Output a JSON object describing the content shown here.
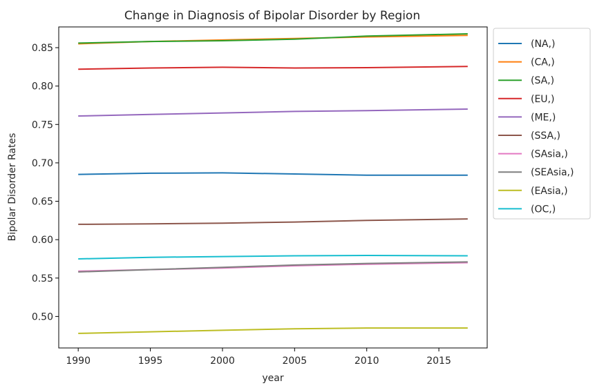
{
  "chart_data": {
    "type": "line",
    "title": "Change in Diagnosis of Bipolar Disorder by Region",
    "xlabel": "year",
    "ylabel": "Bipolar Disorder Rates",
    "xlim": [
      1988.65,
      2018.35
    ],
    "ylim": [
      0.459,
      0.877
    ],
    "xticks": [
      1990,
      1995,
      2000,
      2005,
      2010,
      2015
    ],
    "yticks": [
      0.5,
      0.55,
      0.6,
      0.65,
      0.7,
      0.75,
      0.8,
      0.85
    ],
    "ytick_labels": [
      "0.50",
      "0.55",
      "0.60",
      "0.65",
      "0.70",
      "0.75",
      "0.80",
      "0.85"
    ],
    "grid": false,
    "legend_position": "outside-top-right",
    "x": [
      1990,
      1995,
      2000,
      2005,
      2010,
      2017
    ],
    "series": [
      {
        "name": "(NA,)",
        "color": "#1f77b4",
        "values": [
          0.685,
          0.6865,
          0.687,
          0.6855,
          0.684,
          0.684
        ]
      },
      {
        "name": "(CA,)",
        "color": "#ff7f0e",
        "values": [
          0.855,
          0.858,
          0.86,
          0.862,
          0.864,
          0.866
        ]
      },
      {
        "name": "(SA,)",
        "color": "#2ca02c",
        "values": [
          0.856,
          0.858,
          0.859,
          0.861,
          0.865,
          0.868
        ]
      },
      {
        "name": "(EU,)",
        "color": "#d62728",
        "values": [
          0.822,
          0.8235,
          0.8245,
          0.8235,
          0.824,
          0.8255
        ]
      },
      {
        "name": "(ME,)",
        "color": "#9467bd",
        "values": [
          0.761,
          0.763,
          0.765,
          0.767,
          0.768,
          0.77
        ]
      },
      {
        "name": "(SSA,)",
        "color": "#8c564b",
        "values": [
          0.62,
          0.6205,
          0.6215,
          0.623,
          0.625,
          0.627
        ]
      },
      {
        "name": "(SAsia,)",
        "color": "#e377c2",
        "values": [
          0.559,
          0.561,
          0.563,
          0.566,
          0.568,
          0.57
        ]
      },
      {
        "name": "(SEAsia,)",
        "color": "#7f7f7f",
        "values": [
          0.558,
          0.561,
          0.564,
          0.567,
          0.569,
          0.571
        ]
      },
      {
        "name": "(EAsia,)",
        "color": "#bcbd22",
        "values": [
          0.478,
          0.48,
          0.482,
          0.484,
          0.485,
          0.485
        ]
      },
      {
        "name": "(OC,)",
        "color": "#17becf",
        "values": [
          0.575,
          0.577,
          0.578,
          0.579,
          0.5795,
          0.579
        ]
      }
    ]
  }
}
